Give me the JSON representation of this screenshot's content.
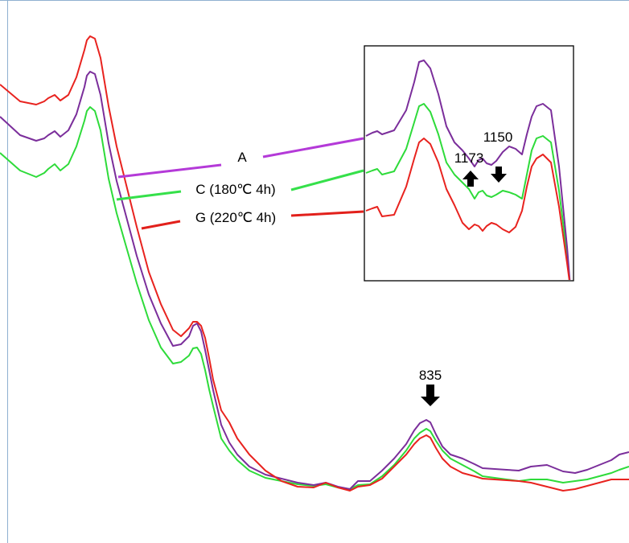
{
  "chart_data": {
    "type": "line",
    "title": "",
    "xlabel": "",
    "ylabel": "",
    "axes_visible": false,
    "series": [
      {
        "name": "A",
        "color": "#7b2e9b",
        "leader_color": "#b43ad8",
        "x": [
          0,
          25,
          45,
          55,
          60,
          68,
          75,
          85,
          95,
          105,
          108,
          112,
          118,
          125,
          135,
          145,
          155,
          170,
          185,
          200,
          215,
          225,
          235,
          240,
          245,
          250,
          255,
          260,
          265,
          275,
          285,
          295,
          310,
          330,
          350,
          370,
          390,
          405,
          420,
          435,
          445,
          460,
          475,
          490,
          505,
          515,
          522,
          530,
          535,
          542,
          550,
          560,
          575,
          590,
          600,
          615,
          630,
          645,
          660,
          680,
          700,
          715,
          730,
          745,
          760,
          770,
          782
        ],
        "y": [
          145,
          168,
          175,
          172,
          168,
          163,
          170,
          162,
          142,
          108,
          94,
          89,
          92,
          118,
          178,
          225,
          262,
          318,
          366,
          402,
          430,
          428,
          418,
          405,
          402,
          412,
          435,
          460,
          485,
          528,
          550,
          565,
          580,
          590,
          595,
          600,
          603,
          600,
          605,
          608,
          598,
          598,
          585,
          570,
          552,
          535,
          526,
          522,
          525,
          540,
          555,
          565,
          570,
          577,
          582,
          583,
          584,
          585,
          580,
          578,
          586,
          588,
          584,
          578,
          572,
          565,
          562
        ]
      },
      {
        "name": "C (180℃ 4h)",
        "color": "#2edb3a",
        "leader_color": "#35e04a",
        "x": [
          0,
          25,
          45,
          55,
          60,
          68,
          75,
          85,
          95,
          105,
          108,
          112,
          118,
          125,
          135,
          145,
          155,
          170,
          185,
          200,
          215,
          225,
          235,
          240,
          245,
          250,
          255,
          260,
          265,
          275,
          285,
          295,
          310,
          330,
          350,
          370,
          390,
          405,
          420,
          435,
          445,
          460,
          475,
          490,
          505,
          515,
          522,
          530,
          535,
          542,
          550,
          560,
          575,
          590,
          600,
          615,
          630,
          645,
          660,
          680,
          700,
          715,
          730,
          745,
          760,
          770,
          782
        ],
        "y": [
          190,
          212,
          220,
          215,
          210,
          204,
          212,
          204,
          182,
          150,
          138,
          133,
          138,
          162,
          222,
          265,
          300,
          352,
          398,
          432,
          452,
          450,
          442,
          433,
          432,
          440,
          460,
          484,
          505,
          545,
          560,
          572,
          585,
          594,
          598,
          602,
          604,
          602,
          606,
          608,
          603,
          602,
          592,
          578,
          560,
          545,
          538,
          533,
          536,
          548,
          560,
          570,
          578,
          586,
          592,
          594,
          596,
          598,
          596,
          596,
          600,
          598,
          596,
          592,
          588,
          584,
          580
        ]
      },
      {
        "name": "G (220℃ 4h)",
        "color": "#e8231f",
        "leader_color": "#e2201b",
        "x": [
          0,
          25,
          45,
          55,
          60,
          68,
          75,
          85,
          95,
          105,
          108,
          112,
          118,
          125,
          135,
          145,
          155,
          170,
          185,
          200,
          215,
          225,
          235,
          240,
          245,
          250,
          255,
          260,
          265,
          275,
          285,
          295,
          310,
          330,
          350,
          370,
          390,
          405,
          420,
          435,
          445,
          460,
          475,
          490,
          505,
          515,
          522,
          530,
          535,
          542,
          550,
          560,
          575,
          590,
          600,
          615,
          630,
          645,
          660,
          680,
          700,
          715,
          730,
          745,
          760,
          770,
          782
        ],
        "y": [
          105,
          126,
          130,
          126,
          122,
          118,
          125,
          118,
          96,
          62,
          50,
          45,
          48,
          72,
          132,
          182,
          222,
          282,
          338,
          378,
          410,
          418,
          408,
          400,
          400,
          405,
          420,
          445,
          472,
          510,
          525,
          545,
          565,
          585,
          598,
          605,
          606,
          600,
          606,
          610,
          605,
          603,
          595,
          580,
          565,
          552,
          545,
          541,
          544,
          557,
          570,
          580,
          588,
          592,
          595,
          596,
          597,
          598,
          600,
          605,
          610,
          608,
          604,
          600,
          596,
          596,
          596
        ]
      }
    ],
    "annotations": [
      {
        "text": "835",
        "arrow": "down"
      },
      {
        "text": "1173",
        "arrow": "up"
      },
      {
        "text": "1150",
        "arrow": "down"
      }
    ],
    "inset": {
      "series": [
        {
          "name": "A",
          "x": [
            0,
            8,
            14,
            20,
            35,
            50,
            60,
            66,
            72,
            80,
            90,
            100,
            110,
            120,
            128,
            135,
            140,
            145,
            150,
            156,
            162,
            170,
            178,
            186,
            194,
            200,
            206,
            212,
            220,
            230,
            240,
            250,
            254
          ],
          "y": [
            112,
            108,
            106,
            110,
            105,
            80,
            45,
            20,
            18,
            28,
            60,
            100,
            120,
            130,
            140,
            150,
            142,
            140,
            146,
            148,
            143,
            132,
            125,
            128,
            135,
            110,
            88,
            75,
            72,
            80,
            150,
            250,
            300
          ]
        },
        {
          "name": "C (180℃ 4h)",
          "x": [
            0,
            8,
            14,
            20,
            35,
            50,
            60,
            66,
            72,
            80,
            90,
            100,
            110,
            120,
            128,
            135,
            140,
            145,
            150,
            156,
            162,
            170,
            178,
            186,
            194,
            200,
            206,
            212,
            220,
            230,
            240,
            250,
            254
          ],
          "y": [
            158,
            155,
            153,
            160,
            156,
            128,
            95,
            75,
            72,
            82,
            110,
            145,
            160,
            170,
            178,
            190,
            182,
            180,
            186,
            188,
            185,
            180,
            182,
            185,
            190,
            160,
            130,
            115,
            112,
            120,
            180,
            260,
            300
          ]
        },
        {
          "name": "G (220℃ 4h)",
          "x": [
            0,
            8,
            14,
            20,
            35,
            50,
            60,
            66,
            72,
            80,
            90,
            100,
            110,
            120,
            128,
            135,
            140,
            145,
            150,
            156,
            162,
            170,
            178,
            186,
            194,
            200,
            206,
            212,
            220,
            230,
            240,
            250,
            254
          ],
          "y": [
            205,
            202,
            200,
            212,
            210,
            175,
            140,
            120,
            115,
            122,
            145,
            178,
            198,
            220,
            228,
            222,
            224,
            230,
            224,
            220,
            222,
            228,
            232,
            225,
            205,
            175,
            150,
            140,
            135,
            145,
            200,
            270,
            300
          ]
        }
      ]
    }
  }
}
